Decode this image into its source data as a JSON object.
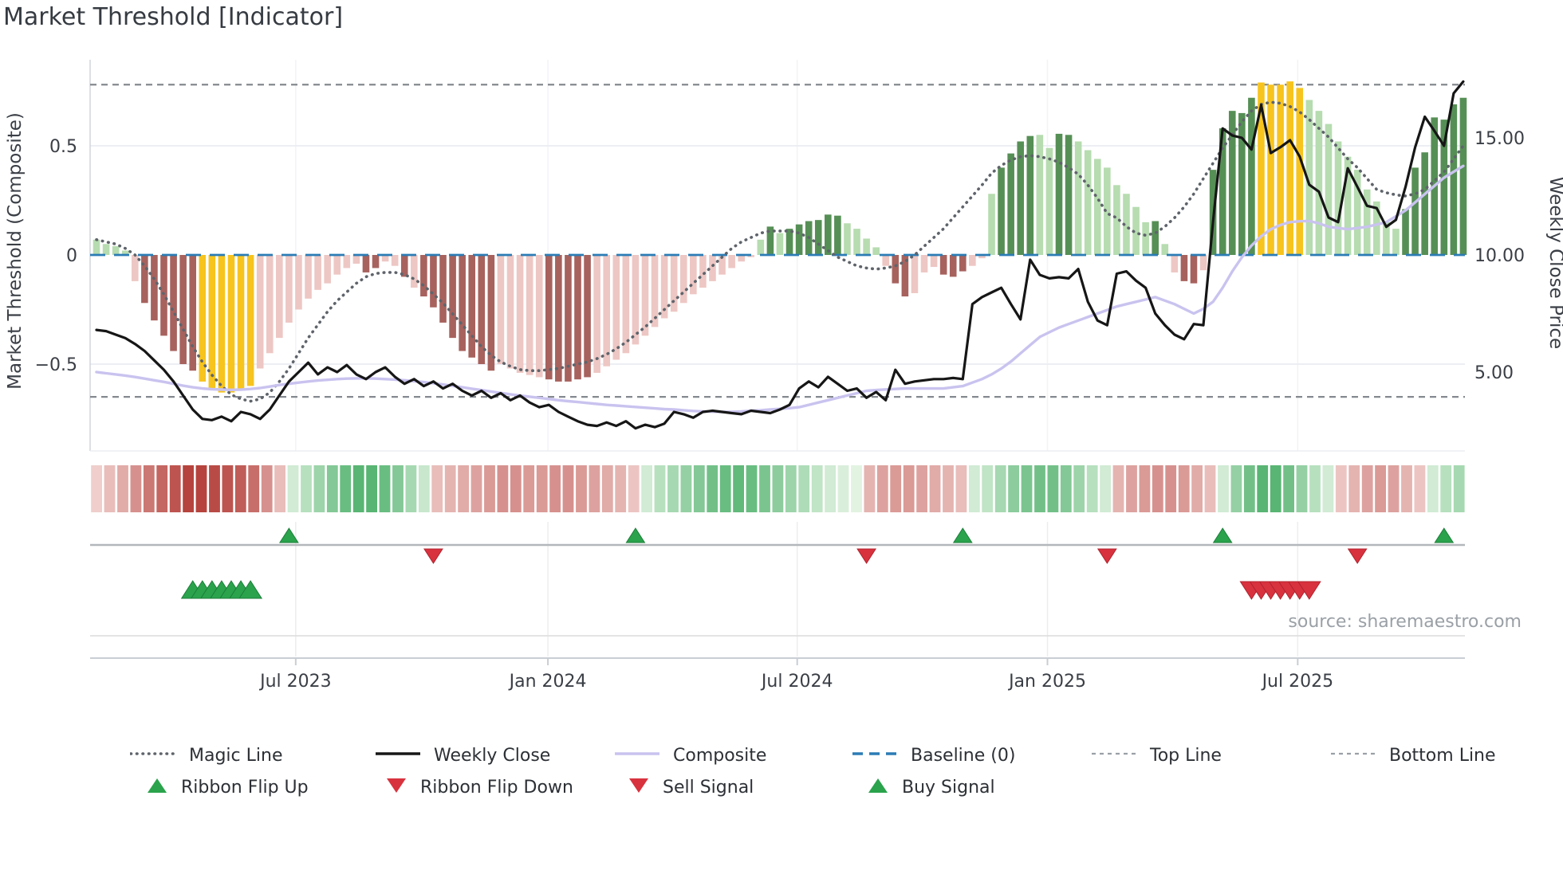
{
  "title": "Market Threshold [Indicator]",
  "source": "source: sharemaestro.com",
  "axes": {
    "left_title": "Market Threshold (Composite)",
    "right_title": "Weekly Close Price",
    "left_ticks": [
      {
        "label": "0.5",
        "value": 0.5
      },
      {
        "label": "0",
        "value": 0.0
      },
      {
        "label": "−0.5",
        "value": -0.5
      }
    ],
    "right_ticks": [
      {
        "label": "15.00",
        "price": 15.0
      },
      {
        "label": "10.00",
        "price": 10.0
      },
      {
        "label": "5.00",
        "price": 5.0
      }
    ],
    "x_ticks": [
      {
        "label": "Jul 2023",
        "week": 20.7
      },
      {
        "label": "Jan 2024",
        "week": 46.9
      },
      {
        "label": "Jul 2024",
        "week": 72.8
      },
      {
        "label": "Jan 2025",
        "week": 98.8
      },
      {
        "label": "Jul 2025",
        "week": 124.8
      }
    ]
  },
  "chart_data": {
    "type": "bar",
    "subtype": "composite-indicator-with-lines",
    "week_count": 143,
    "left_axis_range": [
      -0.9,
      0.9
    ],
    "right_axis_range": [
      1.63,
      18.33
    ],
    "grid": "horizontal-light",
    "reference_lines": {
      "top_line": 0.78,
      "bottom_line": -0.65,
      "baseline": 0.0
    },
    "bars": {
      "values": [
        0.07,
        0.05,
        0.04,
        0.02,
        -0.12,
        -0.22,
        -0.3,
        -0.37,
        -0.44,
        -0.5,
        -0.53,
        -0.58,
        -0.62,
        -0.63,
        -0.63,
        -0.62,
        -0.6,
        -0.52,
        -0.45,
        -0.38,
        -0.31,
        -0.25,
        -0.2,
        -0.16,
        -0.13,
        -0.09,
        -0.06,
        -0.04,
        -0.08,
        -0.06,
        -0.03,
        -0.05,
        -0.1,
        -0.15,
        -0.19,
        -0.24,
        -0.31,
        -0.38,
        -0.44,
        -0.47,
        -0.5,
        -0.53,
        -0.5,
        -0.52,
        -0.54,
        -0.55,
        -0.56,
        -0.57,
        -0.58,
        -0.58,
        -0.57,
        -0.56,
        -0.54,
        -0.51,
        -0.48,
        -0.45,
        -0.41,
        -0.37,
        -0.33,
        -0.29,
        -0.26,
        -0.22,
        -0.18,
        -0.15,
        -0.12,
        -0.09,
        -0.06,
        -0.03,
        -0.01,
        0.07,
        0.13,
        0.1,
        0.12,
        0.14,
        0.155,
        0.16,
        0.185,
        0.18,
        0.145,
        0.12,
        0.075,
        0.035,
        -0.05,
        -0.13,
        -0.19,
        -0.175,
        -0.08,
        -0.055,
        -0.09,
        -0.1,
        -0.075,
        -0.05,
        -0.015,
        0.28,
        0.4,
        0.465,
        0.52,
        0.545,
        0.55,
        0.49,
        0.555,
        0.55,
        0.52,
        0.48,
        0.44,
        0.4,
        0.32,
        0.28,
        0.22,
        0.15,
        0.155,
        0.05,
        -0.08,
        -0.12,
        -0.13,
        -0.07,
        0.39,
        0.58,
        0.66,
        0.65,
        0.72,
        0.79,
        0.78,
        0.78,
        0.795,
        0.765,
        0.71,
        0.66,
        0.6,
        0.52,
        0.45,
        0.39,
        0.3,
        0.245,
        0.15,
        0.12,
        0.21,
        0.4,
        0.47,
        0.63,
        0.62,
        0.69,
        0.72
      ],
      "colors": [
        "G",
        "G",
        "G",
        "G",
        "R",
        "r",
        "r",
        "r",
        "r",
        "r",
        "r",
        "y",
        "y",
        "y",
        "y",
        "y",
        "y",
        "R",
        "R",
        "R",
        "R",
        "R",
        "R",
        "R",
        "R",
        "R",
        "R",
        "R",
        "r",
        "r",
        "R",
        "R",
        "r",
        "R",
        "r",
        "r",
        "r",
        "r",
        "r",
        "r",
        "r",
        "r",
        "R",
        "R",
        "R",
        "R",
        "R",
        "r",
        "r",
        "r",
        "r",
        "r",
        "R",
        "R",
        "R",
        "R",
        "R",
        "R",
        "R",
        "R",
        "R",
        "R",
        "R",
        "R",
        "R",
        "R",
        "R",
        "R",
        "R",
        "G",
        "g",
        "G",
        "g",
        "g",
        "g",
        "g",
        "g",
        "g",
        "G",
        "G",
        "G",
        "G",
        "R",
        "r",
        "r",
        "R",
        "R",
        "R",
        "r",
        "r",
        "r",
        "R",
        "R",
        "G",
        "g",
        "g",
        "g",
        "g",
        "G",
        "G",
        "g",
        "g",
        "G",
        "G",
        "G",
        "G",
        "G",
        "G",
        "G",
        "G",
        "g",
        "G",
        "R",
        "r",
        "r",
        "R",
        "g",
        "g",
        "g",
        "g",
        "g",
        "y",
        "y",
        "y",
        "y",
        "y",
        "G",
        "G",
        "G",
        "G",
        "G",
        "G",
        "G",
        "G",
        "G",
        "G",
        "g",
        "g",
        "g",
        "g",
        "g",
        "g",
        "g"
      ]
    },
    "series": {
      "weekly_close": [
        6.8,
        6.75,
        6.6,
        6.45,
        6.2,
        5.9,
        5.5,
        5.1,
        4.6,
        4.0,
        3.4,
        3.0,
        2.95,
        3.1,
        2.9,
        3.3,
        3.2,
        3.0,
        3.4,
        4.0,
        4.6,
        5.0,
        5.4,
        4.9,
        5.2,
        5.0,
        5.3,
        4.9,
        4.7,
        5.0,
        5.2,
        4.8,
        4.5,
        4.7,
        4.4,
        4.6,
        4.3,
        4.5,
        4.2,
        4.0,
        4.2,
        3.9,
        4.1,
        3.8,
        4.0,
        3.7,
        3.5,
        3.6,
        3.3,
        3.1,
        2.9,
        2.75,
        2.7,
        2.85,
        2.7,
        2.9,
        2.6,
        2.75,
        2.65,
        2.8,
        3.3,
        3.2,
        3.05,
        3.3,
        3.35,
        3.3,
        3.25,
        3.2,
        3.35,
        3.3,
        3.25,
        3.4,
        3.6,
        4.3,
        4.6,
        4.35,
        4.8,
        4.5,
        4.2,
        4.3,
        3.9,
        4.15,
        3.8,
        5.1,
        4.5,
        4.6,
        4.65,
        4.7,
        4.7,
        4.75,
        4.7,
        7.9,
        8.2,
        8.4,
        8.6,
        7.9,
        7.25,
        9.8,
        9.15,
        9.0,
        9.05,
        9.0,
        9.4,
        8.0,
        7.2,
        7.0,
        9.2,
        9.3,
        8.9,
        8.6,
        7.5,
        7.0,
        6.6,
        6.4,
        7.05,
        7.0,
        11.4,
        15.4,
        15.1,
        15.0,
        14.5,
        16.4,
        14.35,
        14.6,
        14.9,
        14.2,
        13.0,
        12.7,
        11.6,
        11.4,
        13.7,
        12.9,
        12.1,
        12.0,
        11.2,
        11.5,
        12.9,
        14.6,
        15.9,
        15.3,
        14.66,
        16.9,
        17.4
      ],
      "composite_line": [
        5.0,
        4.95,
        4.9,
        4.85,
        4.79,
        4.72,
        4.65,
        4.58,
        4.5,
        4.42,
        4.35,
        4.3,
        4.27,
        4.25,
        4.24,
        4.25,
        4.28,
        4.32,
        4.38,
        4.45,
        4.5,
        4.55,
        4.6,
        4.64,
        4.67,
        4.7,
        4.72,
        4.73,
        4.73,
        4.72,
        4.7,
        4.68,
        4.65,
        4.61,
        4.57,
        4.52,
        4.47,
        4.41,
        4.35,
        4.29,
        4.23,
        4.17,
        4.11,
        4.05,
        4.0,
        3.95,
        3.9,
        3.85,
        3.8,
        3.76,
        3.72,
        3.68,
        3.64,
        3.6,
        3.57,
        3.54,
        3.51,
        3.48,
        3.45,
        3.42,
        3.4,
        3.37,
        3.34,
        3.32,
        3.31,
        3.3,
        3.3,
        3.32,
        3.35,
        3.37,
        3.4,
        3.43,
        3.46,
        3.5,
        3.6,
        3.7,
        3.8,
        3.9,
        4.0,
        4.1,
        4.2,
        4.23,
        4.26,
        4.28,
        4.3,
        4.3,
        4.3,
        4.3,
        4.3,
        4.35,
        4.4,
        4.55,
        4.7,
        4.9,
        5.15,
        5.45,
        5.8,
        6.15,
        6.5,
        6.7,
        6.9,
        7.05,
        7.2,
        7.35,
        7.5,
        7.65,
        7.8,
        7.9,
        8.0,
        8.1,
        8.2,
        8.05,
        7.9,
        7.7,
        7.5,
        7.7,
        8.0,
        8.6,
        9.3,
        9.9,
        10.4,
        10.8,
        11.1,
        11.28,
        11.4,
        11.44,
        11.45,
        11.35,
        11.2,
        11.15,
        11.1,
        11.15,
        11.2,
        11.3,
        11.4,
        11.65,
        11.9,
        12.25,
        12.6,
        12.95,
        13.3,
        13.55,
        13.8
      ],
      "magic_line": [
        0.07,
        0.06,
        0.05,
        0.03,
        0.0,
        -0.05,
        -0.11,
        -0.18,
        -0.26,
        -0.34,
        -0.42,
        -0.49,
        -0.55,
        -0.6,
        -0.64,
        -0.66,
        -0.67,
        -0.66,
        -0.63,
        -0.58,
        -0.52,
        -0.45,
        -0.38,
        -0.32,
        -0.26,
        -0.21,
        -0.17,
        -0.13,
        -0.1,
        -0.085,
        -0.08,
        -0.08,
        -0.09,
        -0.11,
        -0.14,
        -0.18,
        -0.22,
        -0.27,
        -0.32,
        -0.37,
        -0.42,
        -0.46,
        -0.49,
        -0.51,
        -0.525,
        -0.53,
        -0.53,
        -0.525,
        -0.52,
        -0.51,
        -0.5,
        -0.49,
        -0.475,
        -0.455,
        -0.43,
        -0.4,
        -0.365,
        -0.33,
        -0.29,
        -0.25,
        -0.21,
        -0.17,
        -0.13,
        -0.09,
        -0.05,
        -0.01,
        0.03,
        0.06,
        0.08,
        0.1,
        0.11,
        0.11,
        0.11,
        0.1,
        0.08,
        0.05,
        0.02,
        -0.01,
        -0.03,
        -0.05,
        -0.06,
        -0.065,
        -0.06,
        -0.05,
        -0.03,
        0.0,
        0.04,
        0.08,
        0.12,
        0.17,
        0.22,
        0.27,
        0.32,
        0.375,
        0.41,
        0.435,
        0.45,
        0.455,
        0.45,
        0.44,
        0.425,
        0.4,
        0.37,
        0.32,
        0.26,
        0.19,
        0.17,
        0.13,
        0.1,
        0.09,
        0.1,
        0.13,
        0.17,
        0.22,
        0.28,
        0.35,
        0.42,
        0.49,
        0.55,
        0.61,
        0.66,
        0.69,
        0.7,
        0.695,
        0.68,
        0.655,
        0.62,
        0.58,
        0.54,
        0.49,
        0.44,
        0.4,
        0.35,
        0.3,
        0.285,
        0.275,
        0.27,
        0.28,
        0.3,
        0.34,
        0.38,
        0.44,
        0.5
      ]
    },
    "ribbon": [
      -0.15,
      -0.25,
      -0.35,
      -0.5,
      -0.65,
      -0.75,
      -0.85,
      -0.95,
      -0.95,
      -0.9,
      -0.85,
      -0.8,
      -0.7,
      -0.5,
      -0.25,
      0.15,
      0.3,
      0.45,
      0.6,
      0.75,
      0.85,
      0.85,
      0.75,
      0.6,
      0.4,
      0.2,
      -0.25,
      -0.3,
      -0.35,
      -0.4,
      -0.45,
      -0.5,
      -0.5,
      -0.45,
      -0.45,
      -0.5,
      -0.5,
      -0.45,
      -0.4,
      -0.35,
      -0.3,
      -0.2,
      0.15,
      0.3,
      0.4,
      0.5,
      0.6,
      0.7,
      0.75,
      0.8,
      0.75,
      0.65,
      0.55,
      0.45,
      0.35,
      0.25,
      0.15,
      0.1,
      0.05,
      -0.3,
      -0.4,
      -0.45,
      -0.45,
      -0.4,
      -0.35,
      -0.3,
      -0.25,
      0.15,
      0.25,
      0.4,
      0.55,
      0.65,
      0.7,
      0.7,
      0.6,
      0.45,
      0.3,
      0.15,
      -0.3,
      -0.4,
      -0.45,
      -0.5,
      -0.5,
      -0.45,
      -0.35,
      -0.25,
      0.15,
      0.5,
      0.7,
      0.85,
      0.85,
      0.7,
      0.5,
      0.3,
      0.15,
      -0.2,
      -0.3,
      -0.4,
      -0.45,
      -0.4,
      -0.3,
      -0.2,
      0.15,
      0.3,
      0.4
    ],
    "signals": {
      "ribbon_flip_up_weeks": [
        20,
        56,
        90,
        117,
        140
      ],
      "ribbon_flip_down_weeks": [
        35,
        80,
        105,
        131
      ],
      "buy_weeks": [
        10,
        11,
        12,
        13,
        14,
        15,
        16
      ],
      "sell_weeks": [
        120,
        121,
        122,
        123,
        124,
        125,
        126
      ]
    }
  },
  "legend": {
    "row1": [
      {
        "label": "Magic Line",
        "swatch": "dotted",
        "color": "#5f646b"
      },
      {
        "label": "Weekly Close",
        "swatch": "solid",
        "color": "#161616"
      },
      {
        "label": "Composite",
        "swatch": "solid",
        "color": "#c9c3ef"
      },
      {
        "label": "Baseline (0)",
        "swatch": "dashed",
        "color": "#2b7cb5"
      },
      {
        "label": "Top Line",
        "swatch": "fine-dashed",
        "color": "#9aa0a6"
      },
      {
        "label": "Bottom Line",
        "swatch": "fine-dashed",
        "color": "#9aa0a6"
      }
    ],
    "row2": [
      {
        "label": "Ribbon Flip Up",
        "swatch": "up-triangle",
        "color": "#2aa34c"
      },
      {
        "label": "Ribbon Flip Down",
        "swatch": "down-triangle",
        "color": "#d8323e"
      },
      {
        "label": "Sell Signal",
        "swatch": "down-triangle",
        "color": "#d8323e"
      },
      {
        "label": "Buy Signal",
        "swatch": "up-triangle",
        "color": "#2aa34c"
      }
    ]
  },
  "colors": {
    "bar_dark_green": "#568f55",
    "bar_light_green": "#b6dcb0",
    "bar_dark_red": "#a7625e",
    "bar_light_red": "#edc7c4",
    "bar_yellow": "#f7c41e",
    "magic_line": "#5f646b",
    "weekly_close": "#161616",
    "composite_line": "#c9c3ef",
    "baseline": "#2b7cb5",
    "top_bottom_line": "#85898f",
    "grid": "#e9ecf2",
    "spine": "#d4d8de",
    "axis_line": "#c9ced4",
    "tick_text": "#3a3e45",
    "signal_axis": "#b3b7bb",
    "panel_grid": "#ededed",
    "separator": "#dcdcdc",
    "up_green": "#2aa34c",
    "up_green_edge": "#1c7d39",
    "down_red": "#d8323e",
    "down_red_edge": "#b0222d",
    "ribbon_green_hi": "#3ea95e",
    "ribbon_green_lo": "#ebf7e9",
    "ribbon_red_hi": "#b23a34",
    "ribbon_red_lo": "#fae8e7"
  }
}
